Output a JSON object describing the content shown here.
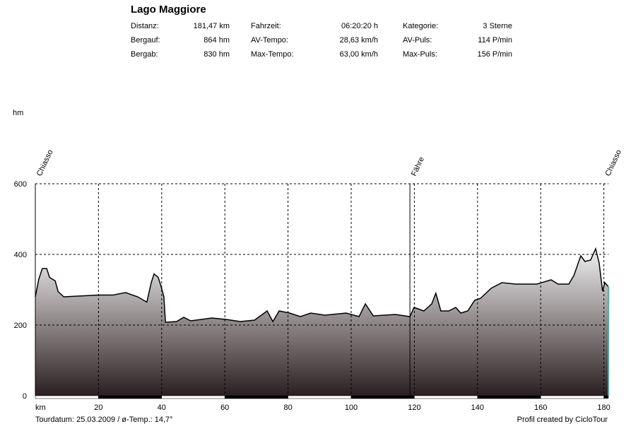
{
  "header": {
    "title": "Lago Maggiore",
    "stats": [
      {
        "label": "Distanz:",
        "value": "181,47 km"
      },
      {
        "label": "Bergauf:",
        "value": "864 hm"
      },
      {
        "label": "Bergab:",
        "value": "830 hm"
      },
      {
        "label": "Fahrzeit:",
        "value": "06:20:20 h"
      },
      {
        "label": "AV-Tempo:",
        "value": "28,63 km/h"
      },
      {
        "label": "Max-Tempo:",
        "value": "63,00 km/h"
      },
      {
        "label": "Kategorie:",
        "value": "3 Sterne"
      },
      {
        "label": "AV-Puls:",
        "value": "114 P/min"
      },
      {
        "label": "Max-Puls:",
        "value": "156 P/min"
      }
    ]
  },
  "chart_data": {
    "type": "area",
    "xlabel": "km",
    "ylabel": "hm",
    "xlim": [
      0,
      181.47
    ],
    "ylim": [
      0,
      600
    ],
    "xticks": [
      "20",
      "40",
      "60",
      "80",
      "100",
      "120",
      "140",
      "160",
      "180"
    ],
    "yticks": [
      "0",
      "200",
      "400",
      "600"
    ],
    "grid": true,
    "x": [
      0,
      1.1,
      2.2,
      3.6,
      4.5,
      6.3,
      7.2,
      9,
      13.4,
      20,
      24.6,
      28.6,
      32.4,
      35.3,
      36.7,
      37.6,
      38.9,
      39.8,
      40.7,
      41.2,
      44.7,
      47,
      49.2,
      55.9,
      60.4,
      64.9,
      69.4,
      73.4,
      75.2,
      77.2,
      80.5,
      83.9,
      87.2,
      91.7,
      98.4,
      102.5,
      104.5,
      107,
      114,
      118.6,
      119.9,
      123,
      125.5,
      126.8,
      128.4,
      130.9,
      133.1,
      134.7,
      136.9,
      139.1,
      141,
      144.3,
      147.7,
      152.1,
      158.8,
      163.3,
      165.5,
      168.9,
      170.5,
      172.7,
      174,
      175.8,
      177.4,
      178.5,
      179.6,
      180.3,
      181.47
    ],
    "y": [
      280,
      330,
      360,
      360,
      335,
      325,
      295,
      280,
      282,
      285,
      285,
      292,
      280,
      265,
      320,
      345,
      335,
      310,
      280,
      208,
      210,
      222,
      212,
      220,
      216,
      210,
      214,
      240,
      210,
      240,
      234,
      224,
      234,
      228,
      234,
      224,
      260,
      226,
      230,
      224,
      250,
      240,
      260,
      290,
      240,
      240,
      250,
      234,
      240,
      270,
      276,
      304,
      320,
      316,
      316,
      328,
      316,
      316,
      340,
      396,
      380,
      384,
      416,
      376,
      296,
      320,
      308
    ],
    "waypoints": [
      {
        "name": "Chiasso",
        "km": 0
      },
      {
        "name": "Fähre",
        "km": 118.6
      },
      {
        "name": "Chiasso",
        "km": 180
      }
    ],
    "colors": {
      "fill_top": "#f2f2f2",
      "fill_bottom": "#2a2022",
      "line": "#000000",
      "end_line": "#3fb8b0"
    }
  },
  "footer": {
    "left": "Tourdatum: 25.03.2009  /  ø-Temp.: 14,7°",
    "right": "Profil created by CicloTour"
  }
}
